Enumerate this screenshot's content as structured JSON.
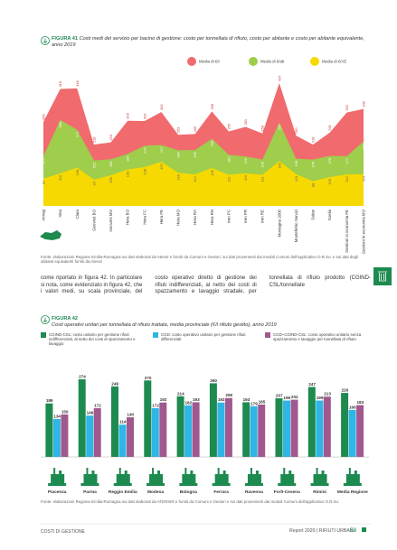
{
  "header": {
    "figure41_number": "FIGURA 41",
    "figure41_title": "Costi medi del servizio per bacino di gestione: costo per tonnellata di rifiuto, costo per abitante e costo per abitante equivalente, anno 2019",
    "figure41_source": "Fonte: elaborazioni Regione Emilia-Romagna sui dati elaborati da Atersir e forniti da Comuni e Gestori, sui dati provenienti dai moduli Comuni dell'applicativo O.R.So. e sui dati degli abitanti equivalenti forniti da Atersir",
    "figure42_number": "FIGURA 42",
    "figure42_title": "Costi operativi unitari per tonnellata di rifiuto trattata, media provinciale (€/t rifiuto gestito), anno 2019",
    "figure42_source": "Fonte: elaborazioni Regione Emilia-Romagna sui dati elaborati da ATERSIR e forniti da Comuni e Gestori e sui dati provenienti dai moduli Comuni dell'applicativo O.R.So."
  },
  "body_text": "come riportato in figura 42. In particolare si nota, come evidenziato in figura 42, che i valori medi, su scala provinciale, del costo operativo diretto di gestione dei rifiuti indifferenziati, al netto dei costi di spazzamento e lavaggio stradale, per tonnellata di rifiuto prodotto (CGIND-CSL/tonnellate",
  "chart_data": [
    {
      "type": "area",
      "categories": [
        "Aimag",
        "Alea",
        "Clara",
        "Geovest BO",
        "Geovest MO",
        "Hera BO",
        "Hera FC",
        "Hera FE",
        "Hera MO",
        "Hera RA",
        "Hera RN",
        "Iren PC",
        "Iren PR",
        "Iren RE",
        "Montagna 2000",
        "Montefeltro Servizi",
        "Sabar",
        "Soelia",
        "Gestioni in economia FE",
        "Gestioni in economia MO"
      ],
      "series": [
        {
          "name": "Media di €/t",
          "color": "#f06a6e",
          "values": [
            299,
            416,
            418,
            218,
            226,
            303,
            302,
            334,
            253,
            256,
            336,
            265,
            281,
            258,
            437,
            250,
            218,
            261,
            332,
            345
          ]
        },
        {
          "name": "Media di €/ab",
          "color": "#9fcd4c",
          "values": [
            177,
            306,
            271,
            162,
            166,
            185,
            214,
            217,
            198,
            199,
            239,
            182,
            176,
            165,
            297,
            168,
            165,
            178,
            177,
            229
          ]
        },
        {
          "name": "Media di €/AE",
          "color": "#f6d900",
          "values": [
            97,
            116,
            136,
            93,
            109,
            130,
            138,
            157,
            118,
            112,
            135,
            111,
            116,
            111,
            160,
            113,
            88,
            103,
            112,
            113
          ]
        }
      ]
    },
    {
      "type": "bar",
      "categories": [
        "Piacenza",
        "Parma",
        "Reggio Emilia",
        "Modena",
        "Bologna",
        "Ferrara",
        "Ravenna",
        "Forlì-Cesena",
        "Rimini",
        "Media Regione"
      ],
      "series": [
        {
          "name": "CGIND-CSL: costo unitario per gestione rifiuti indifferenziati, al netto dei costi di spazzamento e lavaggio",
          "color": "#1d8a4f",
          "values": [
            189,
            274,
            249,
            270,
            214,
            260,
            193,
            207,
            247,
            226
          ]
        },
        {
          "name": "CGD: costo operativo unitario per gestione rifiuti differenziati",
          "color": "#2fb5e6",
          "values": [
            134,
            146,
            114,
            172,
            182,
            192,
            179,
            199,
            199,
            166
          ]
        },
        {
          "name": "CGD+CGIND-CSL: costo operativo unitario senza spazzamento e lavaggio per tonnellata di rifiuto",
          "color": "#a0588f",
          "values": [
            150,
            172,
            140,
            192,
            193,
            208,
            185,
            202,
            213,
            183
          ]
        }
      ]
    }
  ],
  "footer": {
    "section": "COSTI DI GESTIONE",
    "report": "Report 2020 | RIFIUTI URBANI",
    "page": "59"
  }
}
